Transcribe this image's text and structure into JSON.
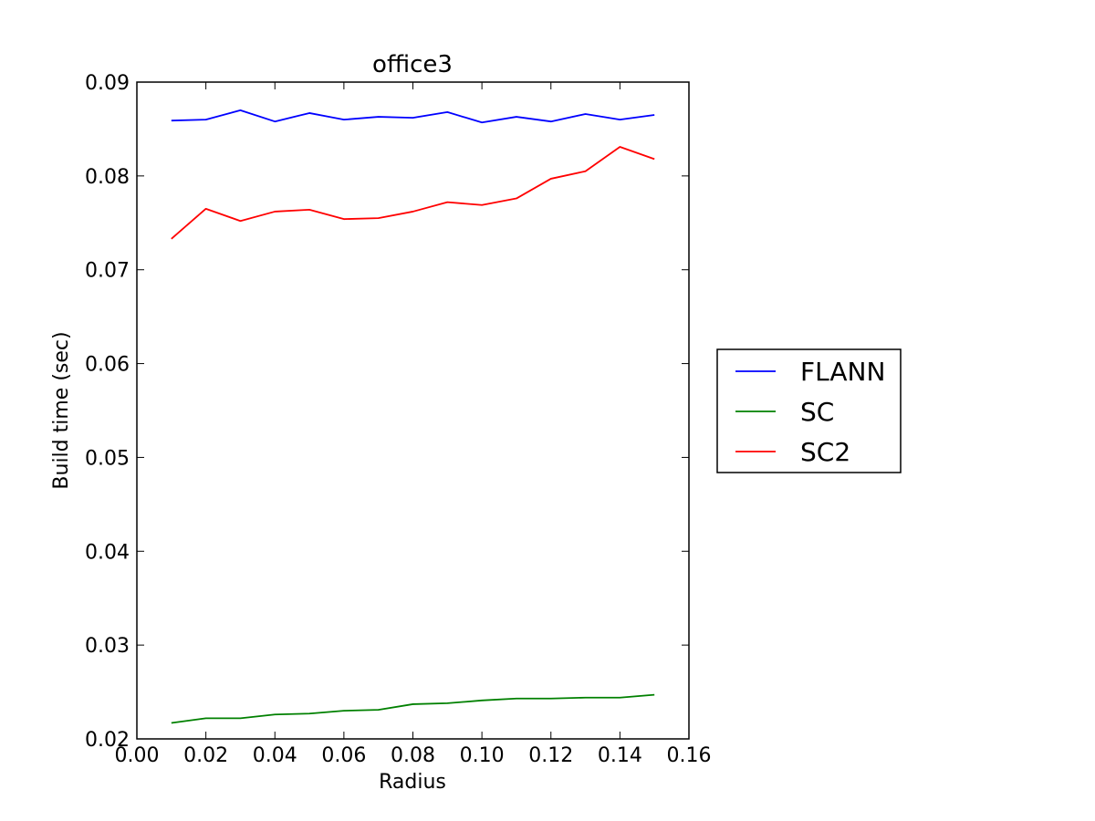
{
  "chart_data": {
    "type": "line",
    "title": "office3",
    "xlabel": "Radius",
    "ylabel": "Build time (sec)",
    "xlim": [
      0.0,
      0.16
    ],
    "ylim": [
      0.02,
      0.09
    ],
    "xticks": [
      "0.00",
      "0.02",
      "0.04",
      "0.06",
      "0.08",
      "0.10",
      "0.12",
      "0.14",
      "0.16"
    ],
    "yticks": [
      "0.02",
      "0.03",
      "0.04",
      "0.05",
      "0.06",
      "0.07",
      "0.08",
      "0.09"
    ],
    "grid": false,
    "legend_position": "right, outside plot",
    "x": [
      0.01,
      0.02,
      0.03,
      0.04,
      0.05,
      0.06,
      0.07,
      0.08,
      0.09,
      0.1,
      0.11,
      0.12,
      0.13,
      0.14,
      0.15
    ],
    "series": [
      {
        "name": "FLANN",
        "color": "#0000ff",
        "values": [
          0.0859,
          0.086,
          0.087,
          0.0858,
          0.0867,
          0.086,
          0.0863,
          0.0862,
          0.0868,
          0.0857,
          0.0863,
          0.0858,
          0.0866,
          0.086,
          0.0865
        ]
      },
      {
        "name": "SC",
        "color": "#008000",
        "values": [
          0.0217,
          0.0222,
          0.0222,
          0.0226,
          0.0227,
          0.023,
          0.0231,
          0.0237,
          0.0238,
          0.0241,
          0.0243,
          0.0243,
          0.0244,
          0.0244,
          0.0247
        ]
      },
      {
        "name": "SC2",
        "color": "#ff0000",
        "values": [
          0.0733,
          0.0765,
          0.0752,
          0.0762,
          0.0764,
          0.0754,
          0.0755,
          0.0762,
          0.0772,
          0.0769,
          0.0776,
          0.0797,
          0.0805,
          0.0831,
          0.0818
        ]
      }
    ]
  }
}
